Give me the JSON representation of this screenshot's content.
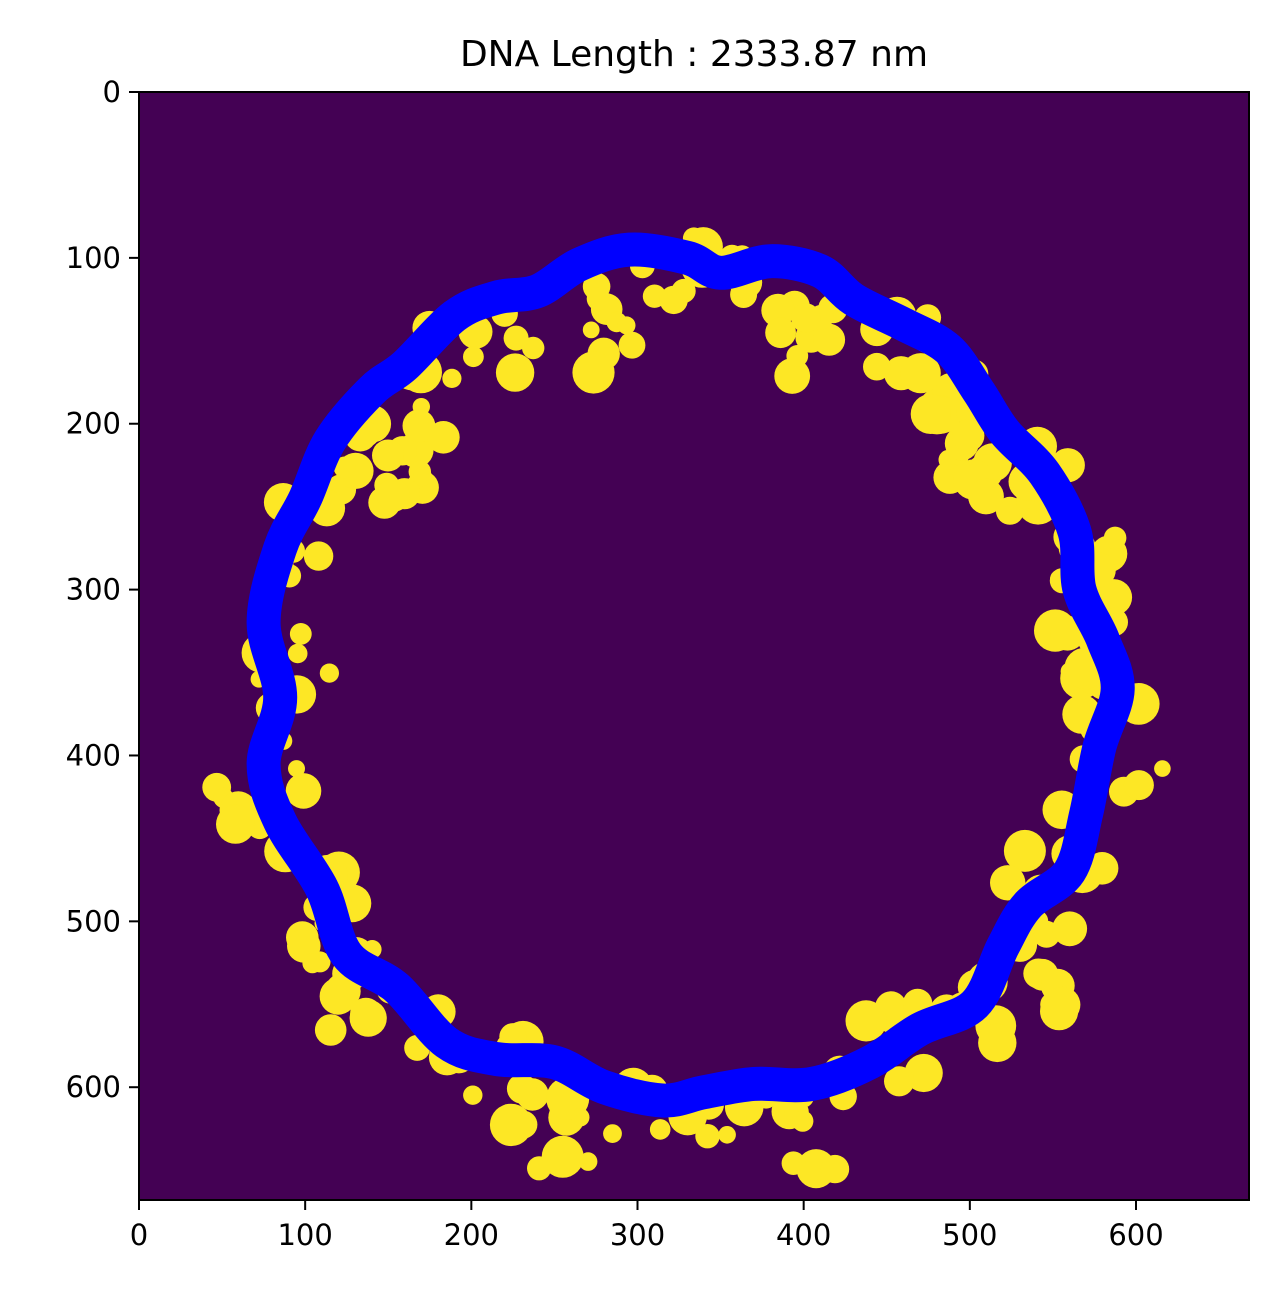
{
  "chart_data": {
    "type": "heatmap",
    "title": "DNA Length : 2333.87 nm",
    "xlabel": "",
    "ylabel": "",
    "xlim": [
      0,
      668
    ],
    "ylim": [
      668,
      0
    ],
    "y_inverted": true,
    "grid": false,
    "legend": "none",
    "x_ticks": [
      0,
      100,
      200,
      300,
      400,
      500,
      600
    ],
    "y_ticks": [
      0,
      100,
      200,
      300,
      400,
      500,
      600
    ],
    "x_tick_labels": [
      "0",
      "100",
      "200",
      "300",
      "400",
      "500",
      "600"
    ],
    "y_tick_labels": [
      "0",
      "100",
      "200",
      "300",
      "400",
      "500",
      "600"
    ],
    "colors": {
      "background": "#440154",
      "mask": "#fde725",
      "trace": "#0000ff"
    },
    "mask_region": {
      "description_units": "data",
      "center": [
        331,
        375
      ],
      "radius_mean": 250,
      "radius_variation": 14,
      "thickness": 52,
      "speckle_count": 260,
      "speckle_radius": [
        5,
        13
      ],
      "seed": 17
    },
    "trace_path": [
      [
        295,
        95
      ],
      [
        330,
        100
      ],
      [
        350,
        109
      ],
      [
        380,
        102
      ],
      [
        410,
        108
      ],
      [
        430,
        125
      ],
      [
        460,
        140
      ],
      [
        487,
        155
      ],
      [
        505,
        180
      ],
      [
        521,
        205
      ],
      [
        545,
        230
      ],
      [
        563,
        265
      ],
      [
        566,
        300
      ],
      [
        580,
        330
      ],
      [
        589,
        360
      ],
      [
        578,
        395
      ],
      [
        570,
        435
      ],
      [
        560,
        470
      ],
      [
        535,
        490
      ],
      [
        520,
        515
      ],
      [
        503,
        550
      ],
      [
        470,
        565
      ],
      [
        440,
        585
      ],
      [
        405,
        598
      ],
      [
        370,
        598
      ],
      [
        340,
        603
      ],
      [
        315,
        608
      ],
      [
        280,
        600
      ],
      [
        250,
        585
      ],
      [
        215,
        583
      ],
      [
        185,
        573
      ],
      [
        155,
        540
      ],
      [
        125,
        520
      ],
      [
        110,
        480
      ],
      [
        85,
        440
      ],
      [
        75,
        405
      ],
      [
        85,
        365
      ],
      [
        75,
        320
      ],
      [
        85,
        275
      ],
      [
        100,
        245
      ],
      [
        115,
        210
      ],
      [
        140,
        180
      ],
      [
        160,
        165
      ],
      [
        190,
        135
      ],
      [
        215,
        124
      ],
      [
        240,
        120
      ],
      [
        265,
        104
      ]
    ]
  }
}
